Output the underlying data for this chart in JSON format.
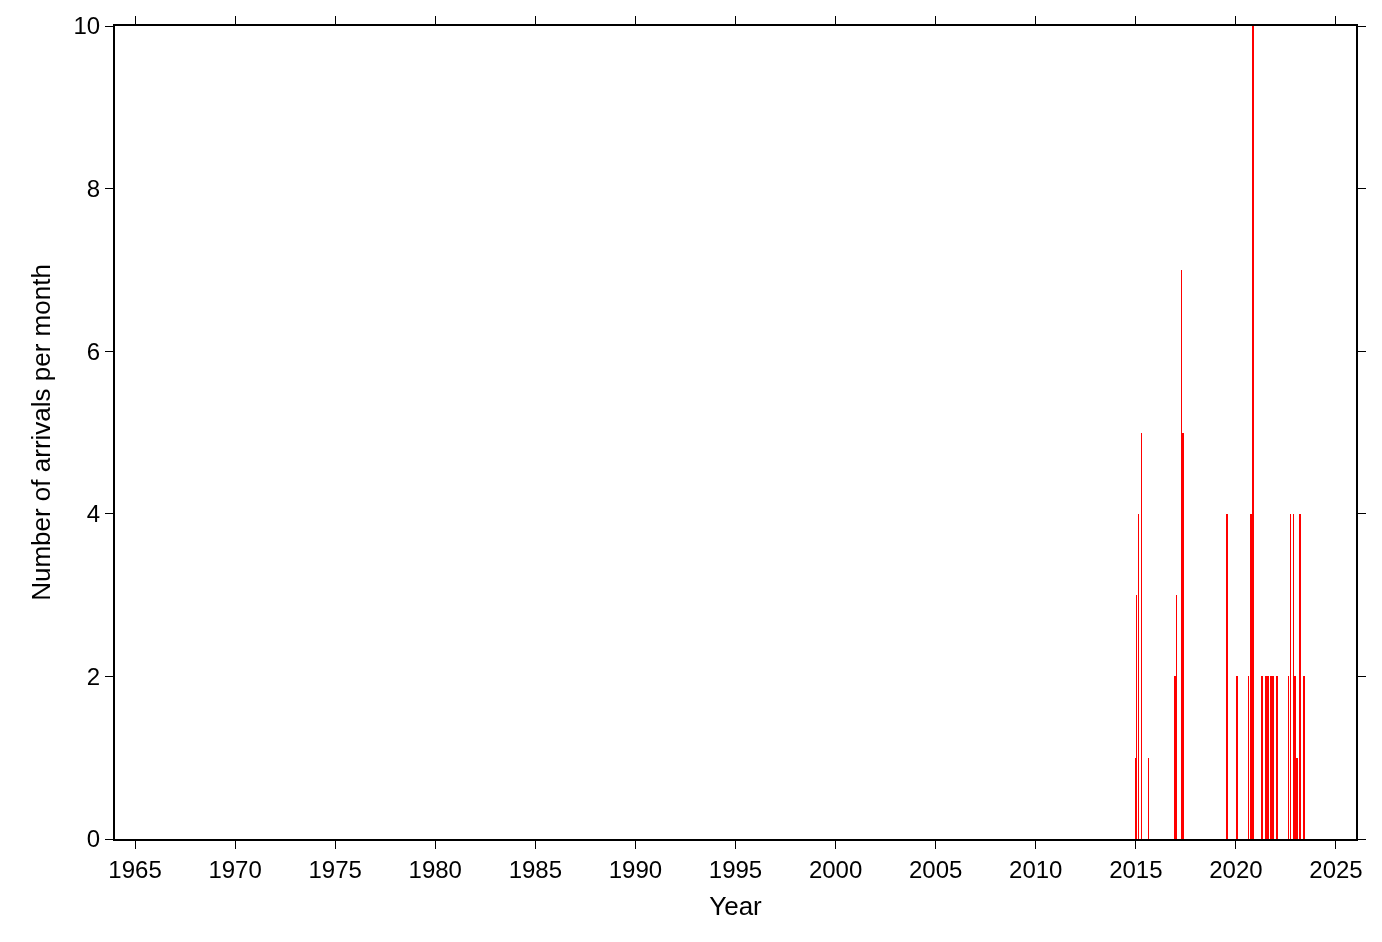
{
  "chart_data": {
    "type": "bar",
    "xlabel": "Year",
    "ylabel": "Number of arrivals per month",
    "x": [
      2014.98,
      2015.03,
      2015.13,
      2015.28,
      2015.63,
      2016.97,
      2017.03,
      2017.28,
      2017.37,
      2019.55,
      2020.06,
      2020.63,
      2020.77,
      2020.87,
      2021.3,
      2021.5,
      2021.6,
      2021.77,
      2021.87,
      2022.04,
      2022.63,
      2022.72,
      2022.87,
      2022.95,
      2023.04,
      2023.2,
      2023.39
    ],
    "series": [
      {
        "color": "#ff0000",
        "values": [
          1,
          3,
          4,
          5,
          1,
          2,
          3,
          7,
          5,
          4,
          2,
          2,
          4,
          10,
          2,
          2,
          2,
          2,
          2,
          2,
          2,
          4,
          4,
          2,
          1,
          4,
          2
        ]
      }
    ],
    "xlim": [
      1964,
      2026
    ],
    "xticks": [
      1965,
      1970,
      1975,
      1980,
      1985,
      1990,
      1995,
      2000,
      2005,
      2010,
      2015,
      2020,
      2025
    ],
    "ylim": [
      0,
      10
    ],
    "yticks": [
      0,
      2,
      4,
      6,
      8,
      10
    ]
  }
}
